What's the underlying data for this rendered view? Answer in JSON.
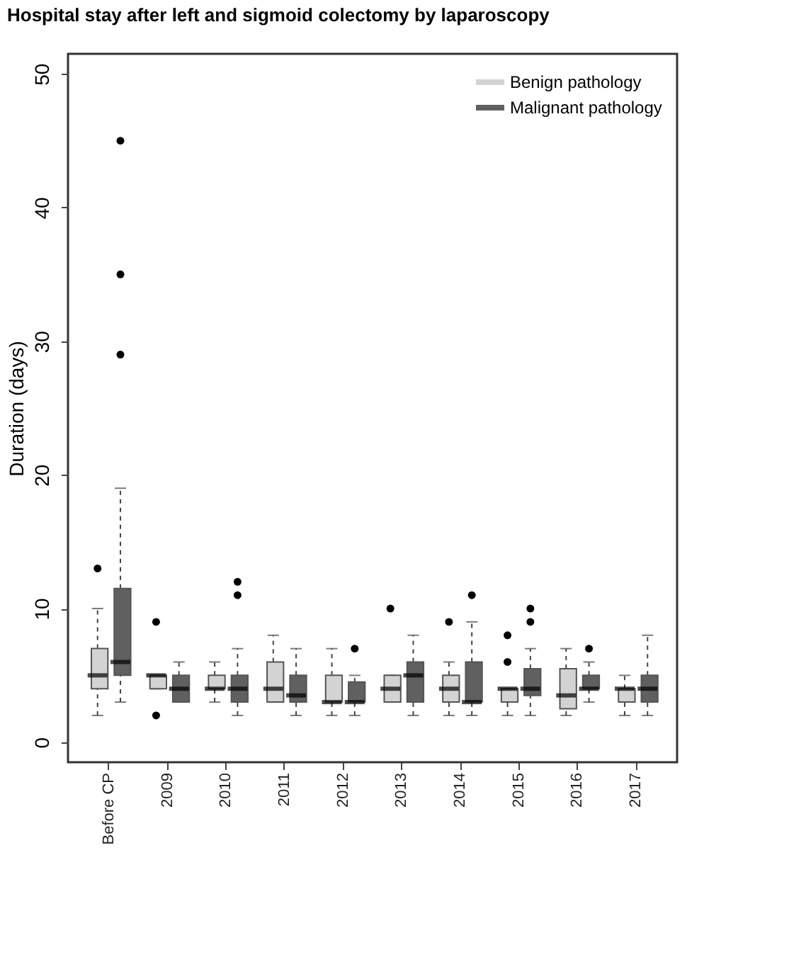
{
  "chart_data": {
    "type": "box",
    "title": "Hospital stay after left and sigmoid colectomy by laparoscopy",
    "ylabel": "Duration (days)",
    "categories": [
      "Before CP",
      "2009",
      "2010",
      "2011",
      "2012",
      "2013",
      "2014",
      "2015",
      "2016",
      "2017"
    ],
    "ylim": [
      -1.5,
      51.5
    ],
    "yticks": [
      0,
      10,
      20,
      30,
      40,
      50
    ],
    "grid": false,
    "legend": "top right",
    "line_style": "dashed",
    "series": [
      {
        "name": "Benign pathology",
        "color": "#d3d3d3",
        "boxes": [
          {
            "low": 2,
            "q1": 4,
            "median": 5,
            "q3": 7,
            "high": 10,
            "outliers": [
              13
            ]
          },
          {
            "low": 4,
            "q1": 4,
            "median": 5,
            "q3": 5,
            "high": 5,
            "outliers": [
              2,
              9
            ]
          },
          {
            "low": 3,
            "q1": 4,
            "median": 4,
            "q3": 5,
            "high": 6
          },
          {
            "low": 3,
            "q1": 3,
            "median": 4,
            "q3": 6,
            "high": 8
          },
          {
            "low": 2,
            "q1": 3,
            "median": 3,
            "q3": 5,
            "high": 7
          },
          {
            "low": 3,
            "q1": 3,
            "median": 4,
            "q3": 5,
            "high": 5,
            "outliers": [
              10
            ]
          },
          {
            "low": 2,
            "q1": 3,
            "median": 4,
            "q3": 5,
            "high": 6,
            "outliers": [
              9
            ]
          },
          {
            "low": 2,
            "q1": 3,
            "median": 4,
            "q3": 4,
            "high": 4,
            "outliers": [
              6,
              8
            ]
          },
          {
            "low": 2,
            "q1": 2.5,
            "median": 3.5,
            "q3": 5.5,
            "high": 7
          },
          {
            "low": 2,
            "q1": 3,
            "median": 4,
            "q3": 4,
            "high": 5
          }
        ]
      },
      {
        "name": "Malignant pathology",
        "color": "#606060",
        "boxes": [
          {
            "low": 3,
            "q1": 5,
            "median": 6,
            "q3": 11.5,
            "high": 19,
            "outliers": [
              29,
              35,
              45
            ]
          },
          {
            "low": 3,
            "q1": 3,
            "median": 4,
            "q3": 5,
            "high": 6
          },
          {
            "low": 2,
            "q1": 3,
            "median": 4,
            "q3": 5,
            "high": 7,
            "outliers": [
              11,
              12
            ]
          },
          {
            "low": 2,
            "q1": 3,
            "median": 3.5,
            "q3": 5,
            "high": 7
          },
          {
            "low": 2,
            "q1": 3,
            "median": 3,
            "q3": 4.5,
            "high": 5,
            "outliers": [
              7
            ]
          },
          {
            "low": 2,
            "q1": 3,
            "median": 5,
            "q3": 6,
            "high": 8
          },
          {
            "low": 2,
            "q1": 3,
            "median": 3,
            "q3": 6,
            "high": 9,
            "outliers": [
              11
            ]
          },
          {
            "low": 2,
            "q1": 3.5,
            "median": 4,
            "q3": 5.5,
            "high": 7,
            "outliers": [
              9,
              10
            ]
          },
          {
            "low": 3,
            "q1": 4,
            "median": 4,
            "q3": 5,
            "high": 6,
            "outliers": [
              7
            ]
          },
          {
            "low": 2,
            "q1": 3,
            "median": 4,
            "q3": 5,
            "high": 8
          }
        ]
      }
    ]
  }
}
